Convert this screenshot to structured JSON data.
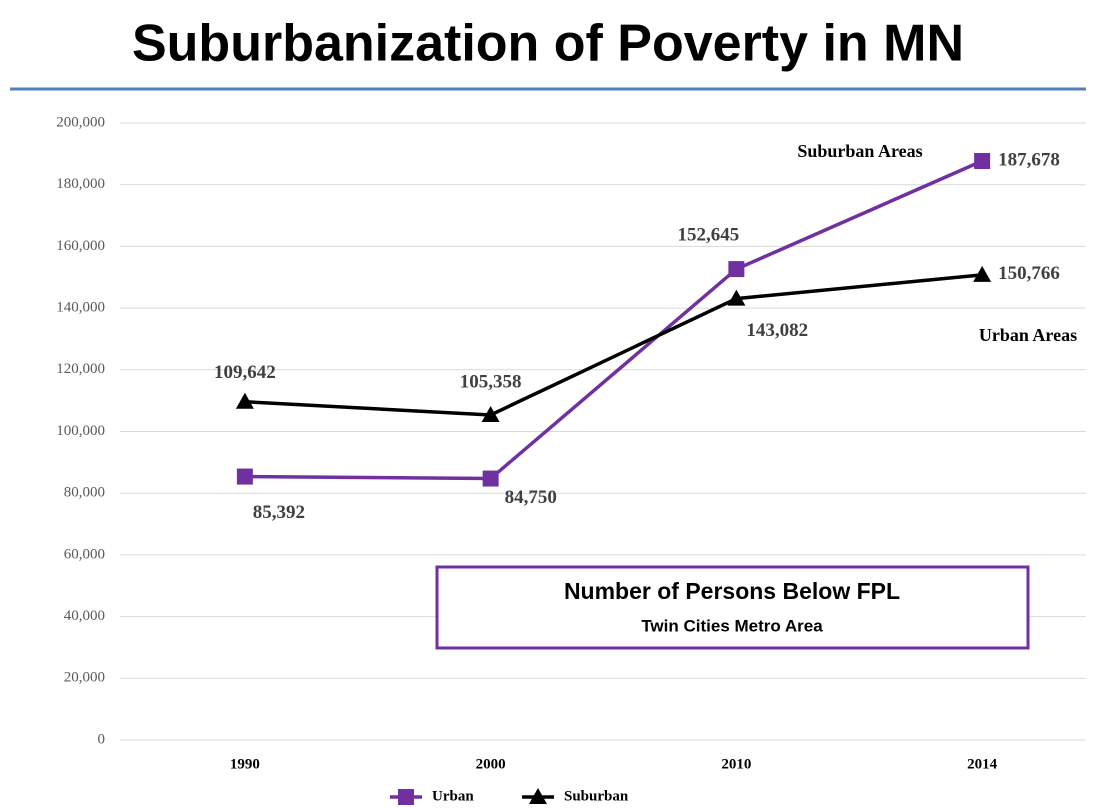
{
  "chart_data": {
    "type": "line",
    "title": "Suburbanization of Poverty in MN",
    "categories": [
      "1990",
      "2000",
      "2010",
      "2014"
    ],
    "series": [
      {
        "name": "Urban",
        "color": "#7030a0",
        "marker": "square",
        "values": [
          85392,
          84750,
          152645,
          187678
        ],
        "value_labels": [
          "85,392",
          "84,750",
          "152,645",
          "187,678"
        ]
      },
      {
        "name": "Suburban",
        "color": "#000000",
        "marker": "triangle",
        "values": [
          109642,
          105358,
          143082,
          150766
        ],
        "value_labels": [
          "109,642",
          "105,358",
          "143,082",
          "150,766"
        ]
      }
    ],
    "ylim": [
      0,
      200000
    ],
    "yticks": [
      0,
      {
        "value": 20000,
        "label": "20,000"
      },
      {
        "value": 40000,
        "label": "40,000"
      },
      {
        "value": 60000,
        "label": "60,000"
      },
      {
        "value": 80000,
        "label": "80,000"
      },
      {
        "value": 100000,
        "label": "100,000"
      },
      {
        "value": 120000,
        "label": "120,000"
      },
      {
        "value": 140000,
        "label": "140,000"
      },
      {
        "value": 160000,
        "label": "160,000"
      },
      {
        "value": 180000,
        "label": "180,000"
      },
      {
        "value": 200000,
        "label": "200,000"
      }
    ],
    "grid": true,
    "legend": "bottom",
    "annotations": [
      "Suburban Areas",
      "Urban Areas"
    ],
    "inset_box": {
      "title": "Number of Persons Below FPL",
      "subtitle": "Twin Cities Metro Area"
    }
  }
}
